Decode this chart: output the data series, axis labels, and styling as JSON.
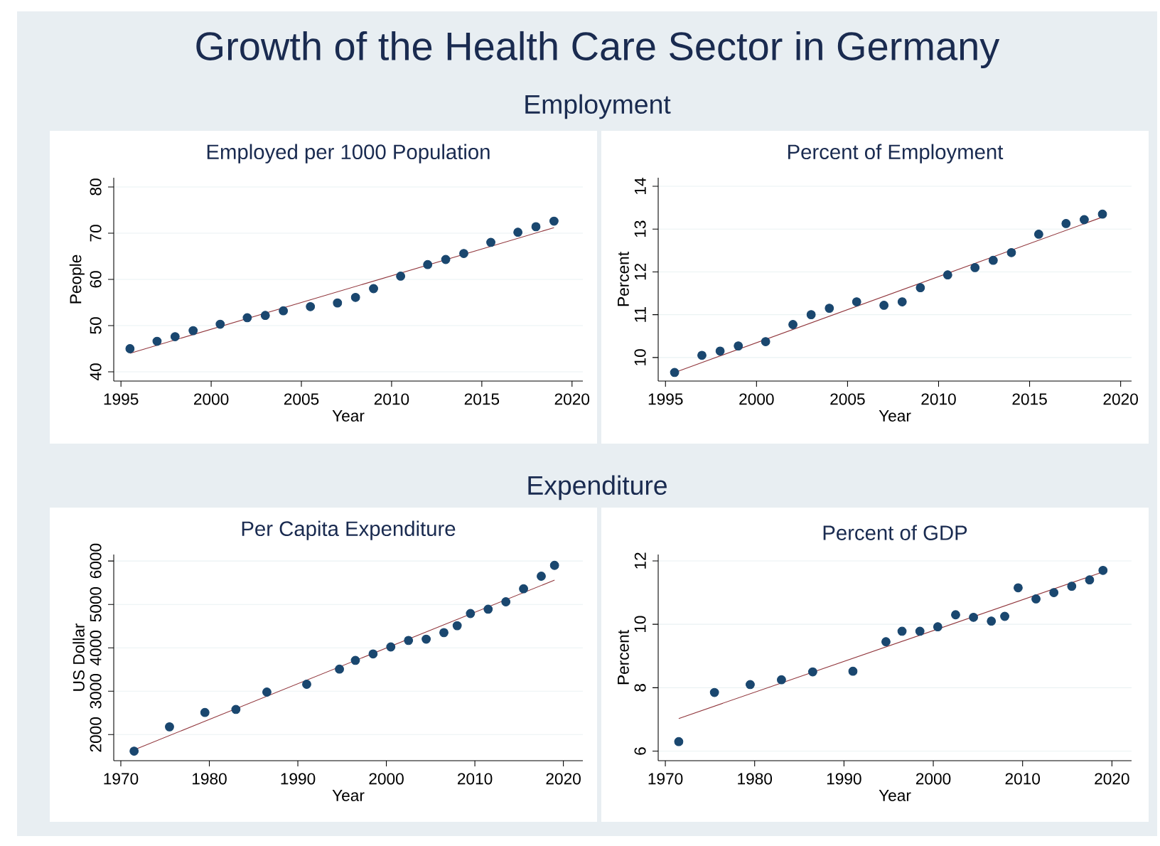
{
  "chart_data": [
    {
      "type": "scatter",
      "title": "Employed per 1000 Population",
      "xlabel": "Year",
      "ylabel": "People",
      "annotations": [
        "Growth of the Health Care Sector in Germany",
        "Employment"
      ],
      "xlim": [
        1994.6,
        2020.6
      ],
      "ylim": [
        38,
        82
      ],
      "xticks": [
        1995,
        2000,
        2005,
        2010,
        2015,
        2020
      ],
      "yticks": [
        40,
        50,
        60,
        70,
        80
      ],
      "grid": "y",
      "series": [
        {
          "marker": "circle",
          "color": "#1a476f",
          "x": [
            1995.5,
            1997,
            1998,
            1999,
            2000.5,
            2002,
            2003,
            2004,
            2005.5,
            2007,
            2008,
            2009,
            2010.5,
            2012,
            2013,
            2014,
            2015.5,
            2017,
            2018,
            2019
          ],
          "values": [
            45,
            46.6,
            47.6,
            48.9,
            50.3,
            51.7,
            52.2,
            53.2,
            54.1,
            54.9,
            56.1,
            58,
            60.7,
            63.2,
            64.3,
            65.6,
            68,
            70.2,
            71.4,
            72.6
          ]
        },
        {
          "type": "line",
          "color": "#90353b",
          "x": [
            1995.5,
            2019
          ],
          "values": [
            44,
            71.2
          ]
        }
      ]
    },
    {
      "type": "scatter",
      "title": "Percent of Employment",
      "xlabel": "Year",
      "ylabel": "Percent",
      "xlim": [
        1994.6,
        2020.6
      ],
      "ylim": [
        9.45,
        14.2
      ],
      "xticks": [
        1995,
        2000,
        2005,
        2010,
        2015,
        2020
      ],
      "yticks": [
        10,
        11,
        12,
        13,
        14
      ],
      "grid": "y",
      "series": [
        {
          "marker": "circle",
          "color": "#1a476f",
          "x": [
            1995.5,
            1997,
            1998,
            1999,
            2000.5,
            2002,
            2003,
            2004,
            2005.5,
            2007,
            2008,
            2009,
            2010.5,
            2012,
            2013,
            2014,
            2015.5,
            2017,
            2018,
            2019
          ],
          "values": [
            9.65,
            10.05,
            10.15,
            10.27,
            10.37,
            10.77,
            11.0,
            11.15,
            11.3,
            11.22,
            11.3,
            11.63,
            11.93,
            12.1,
            12.27,
            12.45,
            12.88,
            13.13,
            13.22,
            13.35
          ]
        },
        {
          "type": "line",
          "color": "#90353b",
          "x": [
            1995.5,
            2019
          ],
          "values": [
            9.65,
            13.28
          ]
        }
      ]
    },
    {
      "type": "scatter",
      "title": "Per Capita Expenditure",
      "xlabel": "Year",
      "ylabel": "US Dollar",
      "annotations": [
        "Expenditure"
      ],
      "xlim": [
        1969.2,
        2022.2
      ],
      "ylim": [
        1400,
        6150
      ],
      "xticks": [
        1970,
        1980,
        1990,
        2000,
        2010,
        2020
      ],
      "yticks": [
        2000,
        3000,
        4000,
        5000,
        6000
      ],
      "grid": "y",
      "series": [
        {
          "marker": "circle",
          "color": "#1a476f",
          "x": [
            1971.5,
            1975.5,
            1979.5,
            1983,
            1986.5,
            1991,
            1994.7,
            1996.5,
            1998.5,
            2000.5,
            2002.5,
            2004.5,
            2006.5,
            2008,
            2009.5,
            2011.5,
            2013.5,
            2015.5,
            2017.5,
            2019
          ],
          "values": [
            1620,
            2180,
            2510,
            2580,
            2980,
            3160,
            3510,
            3710,
            3860,
            4020,
            4170,
            4200,
            4350,
            4510,
            4790,
            4890,
            5060,
            5360,
            5650,
            5900
          ]
        },
        {
          "type": "line",
          "color": "#90353b",
          "x": [
            1971.5,
            2019
          ],
          "values": [
            1650,
            5560
          ]
        }
      ]
    },
    {
      "type": "scatter",
      "title": "Percent of GDP",
      "xlabel": "Year",
      "ylabel": "Percent",
      "xlim": [
        1969.2,
        2022.2
      ],
      "ylim": [
        5.7,
        12.2
      ],
      "xticks": [
        1970,
        1980,
        1990,
        2000,
        2010,
        2020
      ],
      "yticks": [
        6,
        8,
        10,
        12
      ],
      "grid": "y",
      "series": [
        {
          "marker": "circle",
          "color": "#1a476f",
          "x": [
            1971.5,
            1975.5,
            1979.5,
            1983,
            1986.5,
            1991,
            1994.7,
            1996.5,
            1998.5,
            2000.5,
            2002.5,
            2004.5,
            2006.5,
            2008,
            2009.5,
            2011.5,
            2013.5,
            2015.5,
            2017.5,
            2019
          ],
          "values": [
            6.3,
            7.85,
            8.1,
            8.25,
            8.5,
            8.52,
            9.45,
            9.78,
            9.78,
            9.92,
            10.3,
            10.22,
            10.1,
            10.25,
            11.15,
            10.8,
            11.0,
            11.2,
            11.4,
            11.7
          ]
        },
        {
          "type": "line",
          "color": "#90353b",
          "x": [
            1971.5,
            2019
          ],
          "values": [
            7.03,
            11.65
          ]
        }
      ]
    }
  ]
}
